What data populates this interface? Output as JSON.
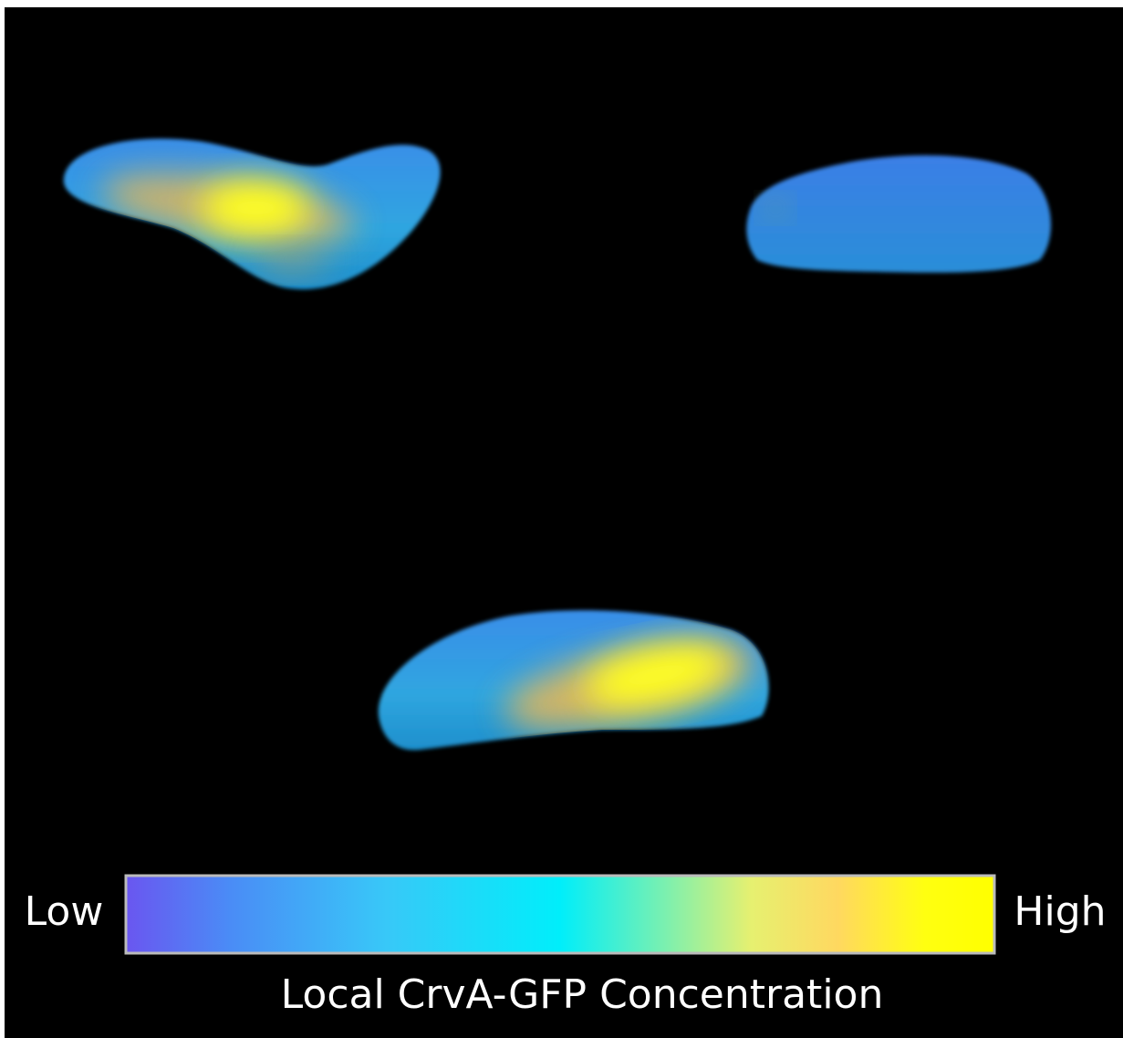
{
  "colorbar": {
    "low_label": "Low",
    "high_label": "High",
    "caption": "Local CrvA-GFP Concentration"
  }
}
